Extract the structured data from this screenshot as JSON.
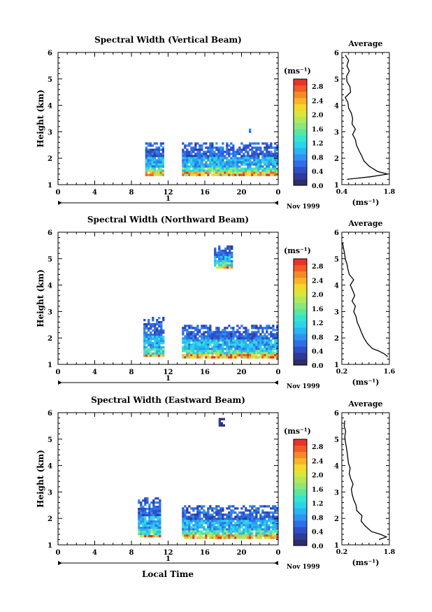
{
  "page": {
    "background": "#ffffff"
  },
  "colorbar": {
    "colors": [
      "#2b2d6e",
      "#2f3a99",
      "#2f4fc8",
      "#2f6fe6",
      "#2f92f2",
      "#29b4f3",
      "#2ad4ea",
      "#35e4cc",
      "#5ae6a3",
      "#8ae77d",
      "#b5e75a",
      "#dbe53a",
      "#f4d82c",
      "#f8b428",
      "#f78a27",
      "#f25a26",
      "#e8322a"
    ],
    "ticks": [
      "0.0",
      "0.4",
      "0.8",
      "1.2",
      "1.6",
      "2.0",
      "2.4",
      "2.8"
    ],
    "unit_label": "(ms⁻¹)"
  },
  "panels": [
    {
      "title": "Spectral Width (Vertical Beam)",
      "ylabel": "Height (km)",
      "date_label": "Nov 1999",
      "avg_title": "Average",
      "avg_xlabel": "(ms⁻¹)",
      "avg_xticks": [
        "0.4",
        "1.8"
      ],
      "xticks": [
        "0",
        "4",
        "8",
        "12",
        "16",
        "20",
        "0"
      ],
      "yticks": [
        "1",
        "2",
        "3",
        "4",
        "5",
        "6"
      ],
      "day_label": "1",
      "xlabel": ""
    },
    {
      "title": "Spectral Width (Northward Beam)",
      "ylabel": "Height (km)",
      "date_label": "Nov 1999",
      "avg_title": "Average",
      "avg_xlabel": "(ms⁻¹)",
      "avg_xticks": [
        "0.2",
        "1.6"
      ],
      "xticks": [
        "0",
        "4",
        "8",
        "12",
        "16",
        "20",
        "0"
      ],
      "yticks": [
        "1",
        "2",
        "3",
        "4",
        "5",
        "6"
      ],
      "day_label": "1",
      "xlabel": ""
    },
    {
      "title": "Spectral Width (Eastward Beam)",
      "ylabel": "Height (km)",
      "date_label": "Nov 1999",
      "avg_title": "Average",
      "avg_xlabel": "(ms⁻¹)",
      "avg_xticks": [
        "0.2",
        "1.8"
      ],
      "xticks": [
        "0",
        "4",
        "8",
        "12",
        "16",
        "20",
        "0"
      ],
      "yticks": [
        "1",
        "2",
        "3",
        "4",
        "5",
        "6"
      ],
      "day_label": "1",
      "xlabel": "Local Time"
    }
  ],
  "chart_data": [
    {
      "type": "heatmap",
      "title": "Spectral Width (Vertical Beam)",
      "xlabel": "",
      "ylabel": "Height (km)",
      "xlim": [
        0,
        24
      ],
      "ylim": [
        1,
        6
      ],
      "colorbar_range": [
        0.0,
        3.0
      ],
      "data_blocks": [
        {
          "x": [
            9.5,
            11.5
          ],
          "y": [
            1.4,
            2.6
          ],
          "typical_value": 0.8
        },
        {
          "x": [
            13.5,
            24
          ],
          "y": [
            1.4,
            2.6
          ],
          "typical_value": 0.8
        },
        {
          "x": [
            20.8,
            21.0
          ],
          "y": [
            3.0,
            3.2
          ],
          "typical_value": 0.6
        }
      ],
      "average_profile": {
        "xlim": [
          0.4,
          1.8
        ],
        "height": [
          1.2,
          1.3,
          1.4,
          1.5,
          1.7,
          1.9,
          2.1,
          2.3,
          2.5,
          2.7,
          2.9,
          3.1,
          3.3,
          3.5,
          3.7,
          3.9,
          4.1,
          4.3,
          4.5,
          4.7,
          4.9,
          5.1,
          5.3,
          5.5,
          5.7,
          5.9
        ],
        "value": [
          0.55,
          1.25,
          1.75,
          1.45,
          1.2,
          1.05,
          0.98,
          0.9,
          0.83,
          0.8,
          0.72,
          0.8,
          0.7,
          0.72,
          0.68,
          0.6,
          0.58,
          0.5,
          0.66,
          0.64,
          0.55,
          0.54,
          0.62,
          0.55,
          0.6,
          0.5
        ]
      }
    },
    {
      "type": "heatmap",
      "title": "Spectral Width (Northward Beam)",
      "xlabel": "",
      "ylabel": "Height (km)",
      "xlim": [
        0,
        24
      ],
      "ylim": [
        1,
        6
      ],
      "colorbar_range": [
        0.0,
        3.0
      ],
      "data_blocks": [
        {
          "x": [
            9.3,
            11.5
          ],
          "y": [
            1.3,
            2.8
          ],
          "typical_value": 0.8
        },
        {
          "x": [
            13.5,
            24
          ],
          "y": [
            1.3,
            2.5
          ],
          "typical_value": 0.8
        },
        {
          "x": [
            17.0,
            19.0
          ],
          "y": [
            4.7,
            5.5
          ],
          "typical_value": 0.5
        }
      ],
      "average_profile": {
        "xlim": [
          0.2,
          1.6
        ],
        "height": [
          1.3,
          1.4,
          1.5,
          1.6,
          1.8,
          2.0,
          2.2,
          2.4,
          2.6,
          2.8,
          3.0,
          3.2,
          3.4,
          3.6,
          3.8,
          4.0,
          4.2,
          4.4,
          4.6,
          4.8,
          5.0,
          5.2,
          5.4,
          5.6
        ],
        "value": [
          1.55,
          1.45,
          1.3,
          1.1,
          0.95,
          0.85,
          0.78,
          0.72,
          0.65,
          0.62,
          0.55,
          0.6,
          0.5,
          0.58,
          0.52,
          0.45,
          0.55,
          0.42,
          0.38,
          0.35,
          0.3,
          0.28,
          0.25,
          0.22
        ]
      }
    },
    {
      "type": "heatmap",
      "title": "Spectral Width (Eastward Beam)",
      "xlabel": "Local Time",
      "ylabel": "Height (km)",
      "xlim": [
        0,
        24
      ],
      "ylim": [
        1,
        6
      ],
      "colorbar_range": [
        0.0,
        3.0
      ],
      "data_blocks": [
        {
          "x": [
            8.7,
            11.2
          ],
          "y": [
            1.3,
            2.8
          ],
          "typical_value": 0.8
        },
        {
          "x": [
            13.5,
            24
          ],
          "y": [
            1.3,
            2.5
          ],
          "typical_value": 0.8
        },
        {
          "x": [
            17.5,
            18.0
          ],
          "y": [
            5.5,
            5.8
          ],
          "typical_value": 0.2
        }
      ],
      "average_profile": {
        "xlim": [
          0.2,
          1.8
        ],
        "height": [
          1.2,
          1.3,
          1.4,
          1.5,
          1.7,
          1.9,
          2.1,
          2.3,
          2.5,
          2.7,
          2.9,
          3.1,
          3.3,
          3.5,
          3.7,
          3.9,
          4.1,
          4.3,
          4.5,
          4.7,
          4.9,
          5.1,
          5.3,
          5.5,
          5.7
        ],
        "value": [
          1.45,
          1.7,
          1.5,
          1.2,
          1.0,
          0.85,
          0.88,
          0.7,
          0.68,
          0.6,
          0.55,
          0.52,
          0.58,
          0.5,
          0.45,
          0.48,
          0.42,
          0.4,
          0.38,
          0.35,
          0.32,
          0.3,
          0.33,
          0.28,
          0.3
        ]
      }
    }
  ]
}
